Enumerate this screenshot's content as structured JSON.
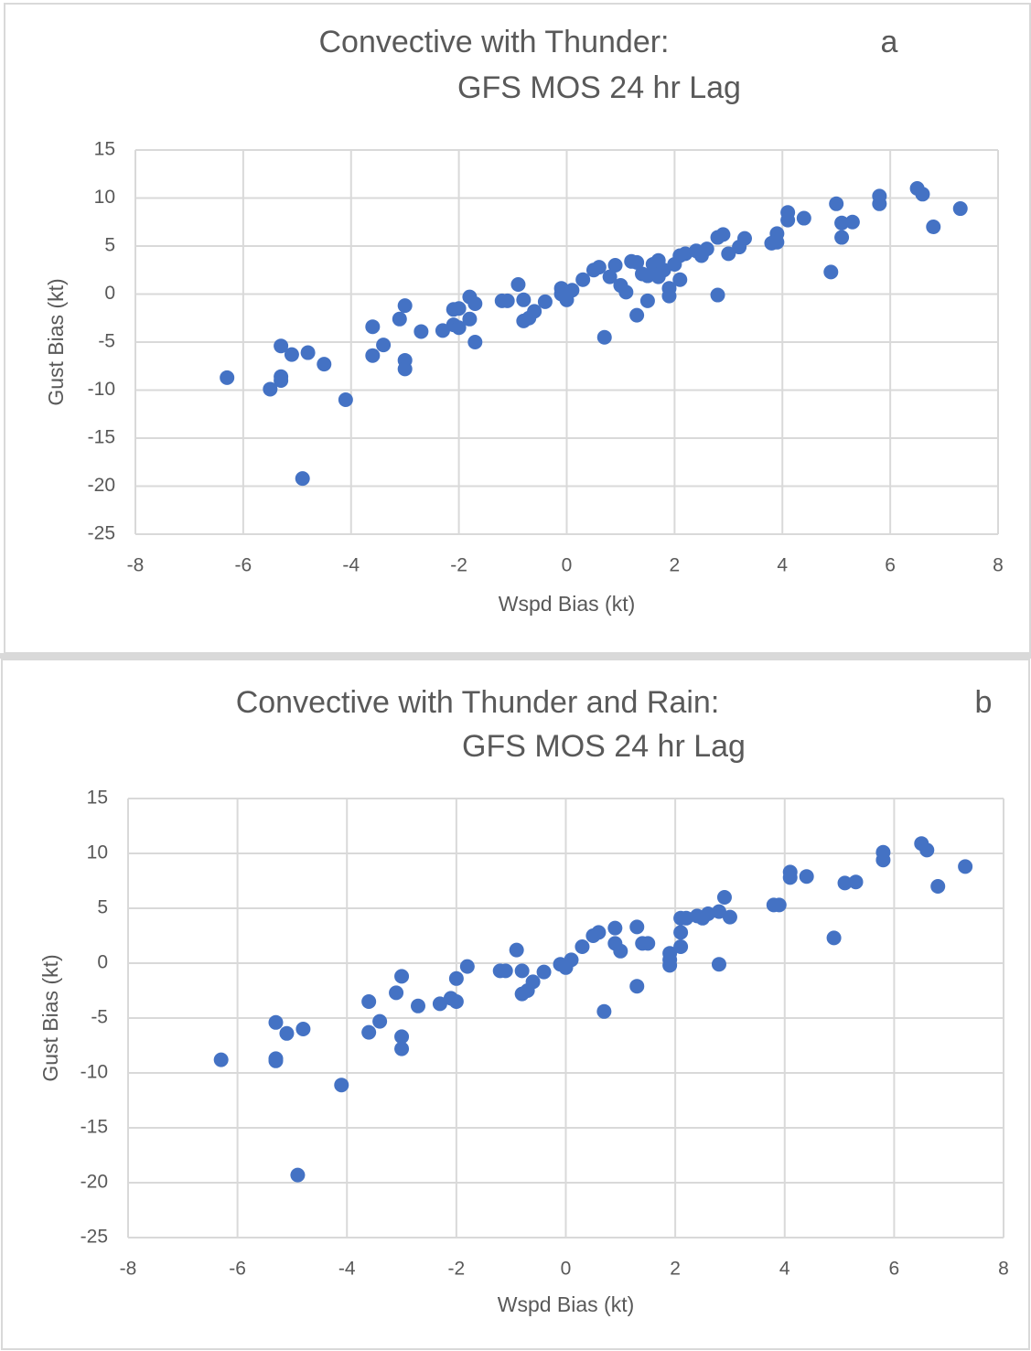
{
  "chart_data": [
    {
      "type": "scatter",
      "title": "Convective with Thunder:",
      "subtitle": "GFS MOS 24 hr Lag",
      "panel_label": "a",
      "x_label": "Wspd Bias (kt)",
      "y_label": "Gust Bias (kt)",
      "color": "#4472c4",
      "grid": true,
      "xlim": [
        -8,
        8
      ],
      "ylim": [
        -25,
        15
      ],
      "xticks": [
        -8,
        -6,
        -4,
        -2,
        0,
        2,
        4,
        6,
        8
      ],
      "yticks": [
        -25,
        -20,
        -15,
        -10,
        -5,
        0,
        5,
        10,
        15
      ],
      "x": [
        -6.3,
        -5.3,
        -5.1,
        -4.8,
        -5.5,
        -5.3,
        -5.3,
        -4.5,
        -4.1,
        -4.9,
        -3.6,
        -3.6,
        -3.4,
        -3.1,
        -3.0,
        -3.0,
        -3.0,
        -2.7,
        -2.3,
        -2.1,
        -2.1,
        -2.0,
        -2.0,
        -1.8,
        -1.8,
        -1.7,
        -1.7,
        -1.2,
        -1.1,
        -0.9,
        -0.8,
        -0.8,
        -0.7,
        -0.6,
        -0.4,
        -0.1,
        -0.1,
        0,
        0.1,
        0.3,
        0.5,
        0.6,
        0.7,
        0.8,
        0.9,
        1.0,
        1.1,
        1.2,
        1.3,
        1.3,
        1.4,
        1.5,
        1.5,
        1.6,
        1.7,
        1.7,
        1.8,
        1.9,
        1.9,
        2.0,
        2.1,
        2.1,
        2.2,
        2.4,
        2.5,
        2.6,
        2.8,
        2.8,
        2.9,
        3.0,
        3.2,
        3.3,
        3.8,
        3.9,
        3.9,
        4.1,
        4.1,
        4.4,
        4.9,
        5.0,
        5.1,
        5.1,
        5.3,
        5.8,
        5.8,
        6.5,
        6.6,
        6.8,
        7.3
      ],
      "y": [
        -8.7,
        -5.4,
        -6.3,
        -6.1,
        -9.9,
        -8.6,
        -9.0,
        -7.3,
        -11.0,
        -19.2,
        -3.4,
        -6.4,
        -5.3,
        -2.6,
        -1.2,
        -6.9,
        -7.8,
        -3.9,
        -3.8,
        -3.2,
        -1.6,
        -1.5,
        -3.5,
        -0.3,
        -2.6,
        -1.0,
        -5.0,
        -0.7,
        -0.7,
        1.0,
        -0.6,
        -2.8,
        -2.5,
        -1.8,
        -0.8,
        0.6,
        0,
        -0.6,
        0.4,
        1.5,
        2.5,
        2.8,
        -4.5,
        1.8,
        3.0,
        0.9,
        0.2,
        3.4,
        3.3,
        -2.2,
        2.1,
        1.9,
        -0.7,
        3.1,
        3.5,
        1.8,
        2.5,
        0.6,
        -0.2,
        3.1,
        4.0,
        1.5,
        4.2,
        4.5,
        4.0,
        4.7,
        5.9,
        -0.1,
        6.2,
        4.2,
        4.9,
        5.8,
        5.3,
        6.3,
        5.4,
        8.5,
        7.7,
        7.9,
        2.3,
        9.4,
        7.4,
        5.9,
        7.5,
        10.2,
        9.4,
        11.0,
        10.4,
        7.0,
        8.9
      ]
    },
    {
      "type": "scatter",
      "title": "Convective with Thunder and Rain:",
      "subtitle": "GFS MOS 24 hr Lag",
      "panel_label": "b",
      "x_label": "Wspd Bias (kt)",
      "y_label": "Gust Bias (kt)",
      "color": "#4472c4",
      "grid": true,
      "xlim": [
        -8,
        8
      ],
      "ylim": [
        -25,
        15
      ],
      "xticks": [
        -8,
        -6,
        -4,
        -2,
        0,
        2,
        4,
        6,
        8
      ],
      "yticks": [
        -25,
        -20,
        -15,
        -10,
        -5,
        0,
        5,
        10,
        15
      ],
      "x": [
        -6.3,
        -5.3,
        -5.1,
        -4.8,
        -5.3,
        -5.3,
        -4.1,
        -4.9,
        -3.6,
        -3.6,
        -3.4,
        -3.1,
        -3.0,
        -3.0,
        -3.0,
        -2.7,
        -2.3,
        -2.1,
        -2.0,
        -2.0,
        -1.8,
        -1.2,
        -1.1,
        -0.9,
        -0.8,
        -0.8,
        -0.7,
        -0.6,
        -0.4,
        -0.1,
        0,
        0.1,
        0.3,
        0.5,
        0.6,
        0.7,
        0.9,
        0.9,
        1.0,
        1.3,
        1.3,
        1.4,
        1.5,
        1.9,
        1.9,
        1.9,
        2.1,
        2.1,
        2.1,
        2.2,
        2.4,
        2.5,
        2.6,
        2.8,
        2.8,
        2.9,
        3.0,
        3.8,
        3.9,
        4.1,
        4.1,
        4.4,
        4.9,
        5.1,
        5.3,
        5.8,
        5.8,
        6.5,
        6.6,
        6.8,
        7.3
      ],
      "y": [
        -8.8,
        -5.4,
        -6.4,
        -6.0,
        -8.7,
        -8.9,
        -11.1,
        -19.3,
        -3.5,
        -6.3,
        -5.3,
        -2.7,
        -1.2,
        -6.7,
        -7.8,
        -3.9,
        -3.7,
        -3.2,
        -1.4,
        -3.5,
        -0.3,
        -0.7,
        -0.7,
        1.2,
        -0.7,
        -2.8,
        -2.5,
        -1.7,
        -0.8,
        -0.1,
        -0.4,
        0.3,
        1.5,
        2.5,
        2.8,
        -4.4,
        3.2,
        1.8,
        1.1,
        3.3,
        -2.1,
        1.8,
        1.8,
        0.9,
        -0.2,
        0.3,
        4.1,
        2.8,
        1.5,
        4.1,
        4.3,
        4.1,
        4.5,
        4.7,
        -0.1,
        6.0,
        4.2,
        5.3,
        5.3,
        8.3,
        7.8,
        7.9,
        2.3,
        7.3,
        7.4,
        10.1,
        9.4,
        10.9,
        10.3,
        7.0,
        8.8
      ]
    }
  ]
}
